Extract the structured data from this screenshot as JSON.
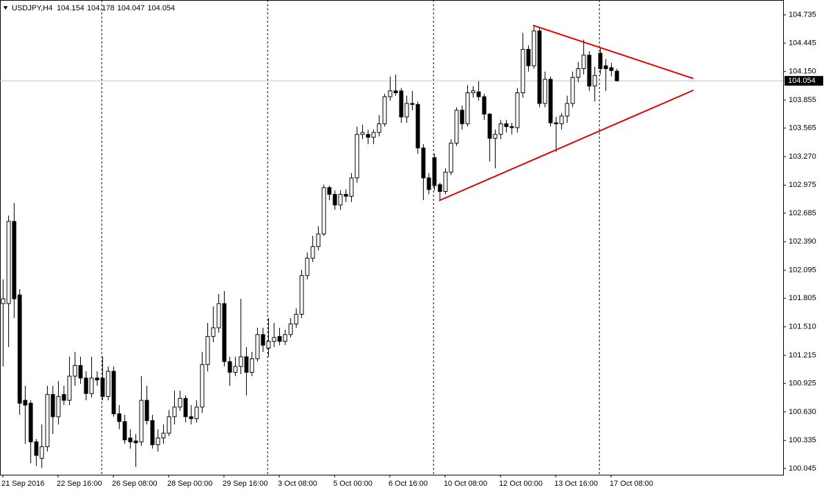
{
  "chart_data": {
    "type": "candlestick",
    "title": "USDJPY,H4",
    "categories": [
      "21 Sep 2016",
      null,
      null,
      null,
      null,
      null,
      null,
      null,
      null,
      null,
      "22 Sep 16:00",
      null,
      null,
      null,
      null,
      null,
      null,
      null,
      null,
      null,
      "26 Sep 08:00",
      null,
      null,
      null,
      null,
      null,
      null,
      null,
      null,
      null,
      "28 Sep 00:00",
      null,
      null,
      null,
      null,
      null,
      null,
      null,
      null,
      null,
      "29 Sep 16:00",
      null,
      null,
      null,
      null,
      null,
      null,
      null,
      null,
      null,
      "3 Oct 08:00",
      null,
      null,
      null,
      null,
      null,
      null,
      null,
      null,
      null,
      "5 Oct 00:00",
      null,
      null,
      null,
      null,
      null,
      null,
      null,
      null,
      null,
      "6 Oct 16:00",
      null,
      null,
      null,
      null,
      null,
      null,
      null,
      null,
      null,
      "10 Oct 08:00",
      null,
      null,
      null,
      null,
      null,
      null,
      null,
      null,
      null,
      "12 Oct 00:00",
      null,
      null,
      null,
      null,
      null,
      null,
      null,
      null,
      null,
      "13 Oct 16:00",
      null,
      null,
      null,
      null,
      null,
      null,
      null,
      null,
      null,
      "17 Oct 08:00",
      null
    ],
    "open": [
      101.75,
      101.75,
      102.6,
      101.84,
      100.75,
      100.72,
      100.32,
      100.15,
      100.27,
      100.81,
      100.58,
      100.81,
      100.75,
      101.0,
      101.11,
      100.98,
      100.82,
      100.98,
      100.98,
      100.79,
      101.05,
      100.61,
      100.53,
      100.36,
      100.33,
      100.32,
      100.75,
      100.54,
      100.29,
      100.36,
      100.41,
      100.58,
      100.68,
      100.77,
      100.58,
      100.56,
      100.68,
      101.12,
      101.41,
      101.5,
      101.75,
      101.15,
      101.04,
      101.1,
      101.2,
      101.04,
      101.18,
      101.43,
      101.29,
      101.36,
      101.41,
      101.36,
      101.43,
      101.54,
      101.64,
      102.04,
      102.22,
      102.34,
      102.47,
      102.95,
      102.88,
      102.77,
      102.88,
      102.86,
      103.05,
      103.5,
      103.5,
      103.47,
      103.52,
      103.61,
      103.89,
      103.95,
      103.95,
      103.68,
      103.82,
      103.81,
      103.36,
      103.05,
      103.26,
      102.98,
      102.91,
      103.11,
      103.41,
      103.75,
      103.61,
      103.93,
      103.94,
      103.89,
      103.71,
      103.46,
      103.5,
      103.61,
      103.58,
      103.57,
      103.93,
      104.38,
      104.21,
      104.57,
      103.82,
      104.07,
      103.62,
      103.61,
      103.69,
      103.82,
      104.09,
      104.18,
      104.32,
      104.0,
      104.34,
      104.21,
      104.19,
      104.154
    ],
    "high": [
      102.0,
      102.66,
      102.79,
      101.9,
      100.9,
      100.75,
      100.35,
      100.5,
      100.9,
      100.9,
      100.95,
      100.9,
      101.2,
      101.25,
      101.2,
      101.05,
      101.2,
      101.05,
      101.2,
      101.1,
      101.1,
      100.7,
      100.6,
      100.45,
      100.4,
      101.0,
      100.9,
      100.6,
      100.45,
      100.5,
      100.65,
      100.85,
      100.85,
      100.8,
      100.7,
      100.75,
      101.25,
      101.55,
      101.72,
      101.85,
      101.88,
      101.2,
      101.2,
      101.8,
      101.3,
      101.25,
      101.5,
      101.5,
      101.6,
      101.55,
      101.5,
      101.48,
      101.6,
      101.7,
      102.1,
      102.28,
      102.45,
      102.55,
      102.98,
      102.97,
      102.92,
      102.92,
      102.93,
      103.1,
      103.58,
      103.6,
      103.55,
      103.55,
      103.7,
      103.92,
      104.1,
      104.12,
      103.98,
      103.9,
      103.95,
      103.84,
      103.4,
      103.1,
      103.3,
      103.0,
      103.15,
      103.45,
      103.78,
      103.8,
      104.01,
      104.0,
      104.05,
      103.92,
      103.72,
      103.55,
      103.65,
      103.65,
      103.62,
      103.98,
      104.55,
      104.42,
      104.63,
      104.6,
      104.15,
      104.1,
      103.68,
      103.72,
      103.9,
      104.15,
      104.25,
      104.48,
      104.36,
      104.2,
      104.4,
      104.28,
      104.24,
      104.178
    ],
    "low": [
      101.1,
      101.3,
      101.6,
      100.6,
      100.3,
      100.1,
      100.07,
      100.05,
      100.22,
      100.4,
      100.5,
      100.7,
      100.7,
      100.9,
      100.92,
      100.75,
      100.78,
      100.9,
      100.75,
      100.75,
      100.58,
      100.45,
      100.3,
      100.25,
      100.06,
      100.28,
      100.5,
      100.25,
      100.22,
      100.3,
      100.38,
      100.5,
      100.64,
      100.52,
      100.5,
      100.52,
      100.62,
      101.05,
      101.35,
      101.45,
      101.1,
      100.9,
      101.0,
      101.02,
      100.8,
      101.0,
      101.15,
      101.25,
      101.2,
      101.3,
      101.32,
      101.32,
      101.4,
      101.5,
      101.6,
      102.0,
      102.18,
      102.3,
      102.45,
      102.82,
      102.72,
      102.72,
      102.8,
      102.8,
      103.0,
      103.45,
      103.4,
      103.4,
      103.48,
      103.58,
      103.85,
      103.9,
      103.62,
      103.62,
      103.75,
      103.3,
      102.82,
      102.88,
      102.92,
      102.82,
      102.88,
      103.08,
      103.38,
      103.55,
      103.58,
      103.88,
      103.85,
      103.65,
      103.22,
      103.15,
      103.45,
      103.52,
      103.5,
      103.52,
      103.88,
      104.15,
      104.18,
      103.78,
      103.78,
      103.58,
      103.32,
      103.55,
      103.62,
      103.78,
      104.04,
      104.12,
      103.95,
      103.84,
      104.12,
      103.95,
      104.1,
      104.047
    ],
    "close": [
      101.8,
      102.6,
      101.8,
      100.72,
      100.7,
      100.32,
      100.18,
      100.27,
      100.81,
      100.58,
      100.79,
      100.75,
      101.0,
      101.11,
      100.98,
      100.82,
      100.98,
      100.96,
      100.79,
      101.05,
      100.61,
      100.53,
      100.34,
      100.32,
      100.31,
      100.75,
      100.54,
      100.29,
      100.36,
      100.41,
      100.58,
      100.68,
      100.77,
      100.58,
      100.56,
      100.68,
      101.12,
      101.41,
      101.5,
      101.75,
      101.15,
      101.04,
      101.1,
      101.2,
      101.04,
      101.18,
      101.43,
      101.32,
      101.36,
      101.4,
      101.36,
      101.43,
      101.54,
      101.64,
      102.04,
      102.22,
      102.34,
      102.47,
      102.95,
      102.88,
      102.77,
      102.88,
      102.86,
      103.05,
      103.5,
      103.52,
      103.47,
      103.52,
      103.61,
      103.89,
      103.95,
      103.93,
      103.68,
      103.82,
      103.81,
      103.36,
      103.05,
      102.93,
      102.97,
      102.91,
      103.11,
      103.41,
      103.75,
      103.61,
      103.93,
      103.95,
      103.89,
      103.71,
      103.46,
      103.5,
      103.61,
      103.58,
      103.57,
      103.93,
      104.38,
      104.21,
      104.57,
      103.82,
      104.07,
      103.62,
      103.61,
      103.69,
      103.82,
      104.09,
      104.18,
      104.32,
      104.0,
      104.11,
      104.18,
      104.18,
      104.16,
      104.054
    ],
    "ylim": [
      99.98,
      104.89
    ],
    "yticks": [
      104.735,
      104.445,
      {
        "value": 104.15,
        "label": "104.150"
      },
      103.855,
      103.565,
      {
        "value": 103.27,
        "label": "103.270"
      },
      102.975,
      102.685,
      {
        "value": 102.39,
        "label": "102.390"
      },
      102.095,
      101.805,
      {
        "value": 101.51,
        "label": "101.510"
      },
      101.215,
      100.925,
      {
        "value": 100.63,
        "label": "100.630"
      },
      100.335,
      100.045
    ],
    "up_color": "#ffffff",
    "down_color": "#000000",
    "outline_color": "#000000",
    "trendline_color": "#e00000",
    "trendlines": [
      {
        "x": [
          78.9,
          124.9
        ],
        "y": [
          102.815,
          103.957
        ]
      },
      {
        "x": [
          95.9,
          124.9
        ],
        "y": [
          104.628,
          104.078
        ]
      }
    ]
  }
}
